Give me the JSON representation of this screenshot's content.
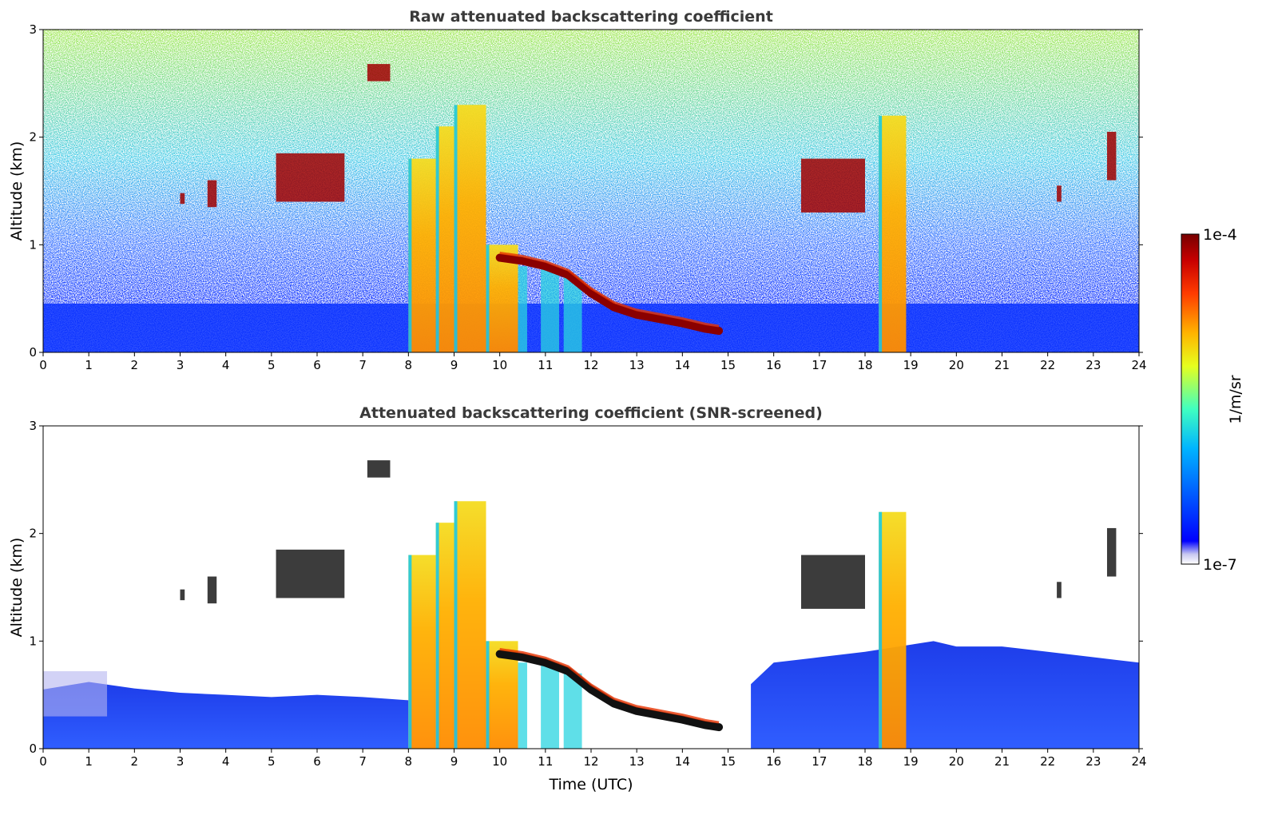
{
  "chart_data": [
    {
      "type": "heatmap",
      "title": "Raw attenuated backscattering coefficient",
      "xlabel": "",
      "ylabel": "Altitude (km)",
      "xlim": [
        0,
        24
      ],
      "ylim": [
        0,
        3
      ],
      "xticks": [
        "0",
        "1",
        "2",
        "3",
        "4",
        "5",
        "6",
        "7",
        "8",
        "9",
        "10",
        "11",
        "12",
        "13",
        "14",
        "15",
        "16",
        "17",
        "18",
        "19",
        "20",
        "21",
        "22",
        "23",
        "24"
      ],
      "yticks": [
        "0",
        "1",
        "2",
        "3"
      ],
      "screened": false
    },
    {
      "type": "heatmap",
      "title": "Attenuated backscattering coefficient (SNR-screened)",
      "xlabel": "Time (UTC)",
      "ylabel": "Altitude (km)",
      "xlim": [
        0,
        24
      ],
      "ylim": [
        0,
        3
      ],
      "xticks": [
        "0",
        "1",
        "2",
        "3",
        "4",
        "5",
        "6",
        "7",
        "8",
        "9",
        "10",
        "11",
        "12",
        "13",
        "14",
        "15",
        "16",
        "17",
        "18",
        "19",
        "20",
        "21",
        "22",
        "23",
        "24"
      ],
      "yticks": [
        "0",
        "1",
        "2",
        "3"
      ],
      "screened": true
    }
  ],
  "colorbar": {
    "label": "1/m/sr",
    "max_label": "1e-4",
    "min_label": "1e-7",
    "range": [
      1e-07,
      0.0001
    ],
    "scale": "log",
    "colormap": "jet"
  },
  "features": {
    "boundary_layer_top_km": [
      [
        0,
        0.55
      ],
      [
        1,
        0.62
      ],
      [
        2,
        0.56
      ],
      [
        3,
        0.52
      ],
      [
        4,
        0.5
      ],
      [
        5,
        0.48
      ],
      [
        6,
        0.5
      ],
      [
        7,
        0.48
      ],
      [
        8,
        0.45
      ],
      [
        15.5,
        0.6
      ],
      [
        16,
        0.8
      ],
      [
        17,
        0.85
      ],
      [
        18,
        0.9
      ],
      [
        19.5,
        1.0
      ],
      [
        20,
        0.95
      ],
      [
        21,
        0.95
      ],
      [
        22,
        0.9
      ],
      [
        23,
        0.85
      ],
      [
        24,
        0.8
      ]
    ],
    "low_cloud_base_km": [
      [
        10.0,
        0.88
      ],
      [
        10.5,
        0.85
      ],
      [
        11.0,
        0.8
      ],
      [
        11.5,
        0.72
      ],
      [
        12.0,
        0.55
      ],
      [
        12.5,
        0.42
      ],
      [
        13.0,
        0.35
      ],
      [
        13.5,
        0.31
      ],
      [
        14.0,
        0.27
      ],
      [
        14.5,
        0.22
      ],
      [
        14.8,
        0.2
      ]
    ],
    "precipitation_bands_h": [
      {
        "start": 8.0,
        "end": 8.6,
        "top_km": 1.8
      },
      {
        "start": 8.6,
        "end": 9.0,
        "top_km": 2.1
      },
      {
        "start": 9.0,
        "end": 9.7,
        "top_km": 2.3
      },
      {
        "start": 9.7,
        "end": 10.4,
        "top_km": 1.0
      },
      {
        "start": 18.3,
        "end": 18.9,
        "top_km": 2.2
      }
    ],
    "cloud_patches": [
      {
        "t0": 7.1,
        "t1": 7.6,
        "z0": 2.52,
        "z1": 2.68
      },
      {
        "t0": 5.1,
        "t1": 6.6,
        "z0": 1.4,
        "z1": 1.85
      },
      {
        "t0": 3.0,
        "t1": 3.1,
        "z0": 1.38,
        "z1": 1.48
      },
      {
        "t0": 3.6,
        "t1": 3.8,
        "z0": 1.35,
        "z1": 1.6
      },
      {
        "t0": 23.3,
        "t1": 23.5,
        "z0": 1.6,
        "z1": 2.05
      },
      {
        "t0": 22.2,
        "t1": 22.3,
        "z0": 1.4,
        "z1": 1.55
      },
      {
        "t0": 16.6,
        "t1": 18.0,
        "z0": 1.3,
        "z1": 1.8
      }
    ]
  }
}
